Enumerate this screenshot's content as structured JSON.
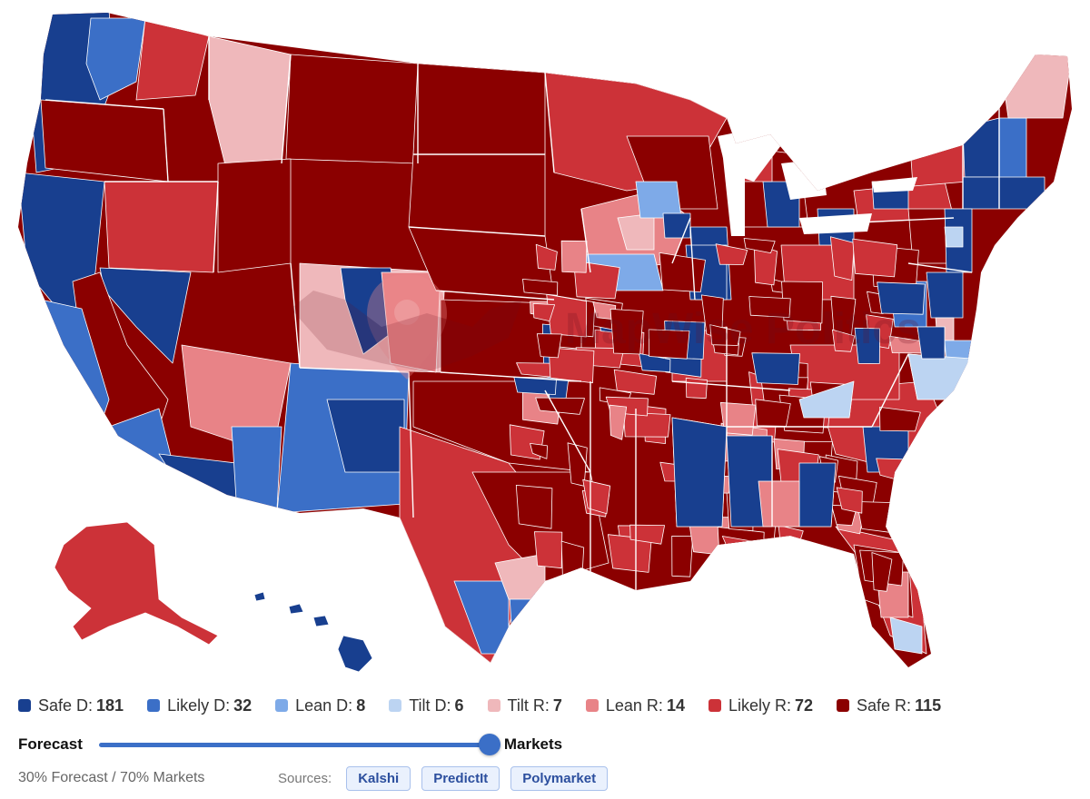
{
  "colors": {
    "safe_d": "#183f8f",
    "likely_d": "#3b6fc7",
    "lean_d": "#7eaae8",
    "tilt_d": "#bcd4f2",
    "tilt_r": "#efb8bb",
    "lean_r": "#e88387",
    "likely_r": "#cc3238",
    "safe_r": "#8b0000",
    "border": "#ffffff"
  },
  "watermark": {
    "text": "MapWise Politics"
  },
  "legend": [
    {
      "key": "safe_d",
      "label": "Safe D:",
      "count": "181"
    },
    {
      "key": "likely_d",
      "label": "Likely D:",
      "count": "32"
    },
    {
      "key": "lean_d",
      "label": "Lean D:",
      "count": "8"
    },
    {
      "key": "tilt_d",
      "label": "Tilt D:",
      "count": "6"
    },
    {
      "key": "tilt_r",
      "label": "Tilt R:",
      "count": "7"
    },
    {
      "key": "lean_r",
      "label": "Lean R:",
      "count": "14"
    },
    {
      "key": "likely_r",
      "label": "Likely R:",
      "count": "72"
    },
    {
      "key": "safe_r",
      "label": "Safe R:",
      "count": "115"
    }
  ],
  "slider": {
    "left_label": "Forecast",
    "right_label": "Markets",
    "markets_fraction": 0.7,
    "markets_position_fraction": 1.0
  },
  "footer": {
    "mix_text": "30% Forecast / 70% Markets",
    "sources_label": "Sources:",
    "sources": [
      "Kalshi",
      "PredictIt",
      "Polymarket"
    ]
  }
}
